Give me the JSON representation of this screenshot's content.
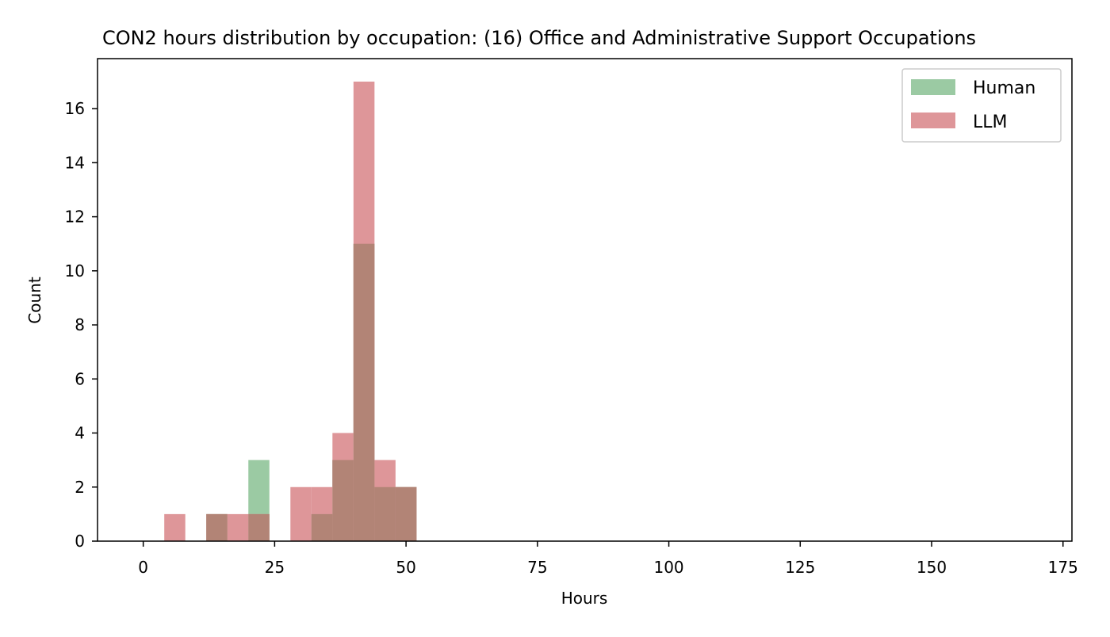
{
  "chart_data": {
    "type": "bar",
    "title": "CON2 hours distribution by occupation: (16) Office and Administrative Support Occupations",
    "xlabel": "Hours",
    "ylabel": "Count",
    "xlim": [
      -8.7,
      176.7
    ],
    "ylim": [
      0,
      17.85
    ],
    "xticks": [
      0,
      25,
      50,
      75,
      100,
      125,
      150,
      175
    ],
    "yticks": [
      0,
      2,
      4,
      6,
      8,
      10,
      12,
      14,
      16
    ],
    "bin_width": 4,
    "legend_position": "top-right",
    "grid": false,
    "series": [
      {
        "name": "Human",
        "color": "#9bcaa3",
        "bins": [
          {
            "x0": 12,
            "x1": 16,
            "value": 1
          },
          {
            "x0": 20,
            "x1": 24,
            "value": 3
          },
          {
            "x0": 32,
            "x1": 36,
            "value": 1
          },
          {
            "x0": 36,
            "x1": 40,
            "value": 3
          },
          {
            "x0": 40,
            "x1": 44,
            "value": 11
          },
          {
            "x0": 44,
            "x1": 48,
            "value": 2
          },
          {
            "x0": 48,
            "x1": 52,
            "value": 2
          }
        ]
      },
      {
        "name": "LLM",
        "color": "#de9699",
        "bins": [
          {
            "x0": 4,
            "x1": 8,
            "value": 1
          },
          {
            "x0": 12,
            "x1": 16,
            "value": 1
          },
          {
            "x0": 16,
            "x1": 20,
            "value": 1
          },
          {
            "x0": 20,
            "x1": 24,
            "value": 1
          },
          {
            "x0": 28,
            "x1": 32,
            "value": 2
          },
          {
            "x0": 32,
            "x1": 36,
            "value": 2
          },
          {
            "x0": 36,
            "x1": 40,
            "value": 4
          },
          {
            "x0": 40,
            "x1": 44,
            "value": 17
          },
          {
            "x0": 44,
            "x1": 48,
            "value": 3
          },
          {
            "x0": 48,
            "x1": 52,
            "value": 2
          }
        ]
      }
    ],
    "overlap_color": "#b28476"
  }
}
